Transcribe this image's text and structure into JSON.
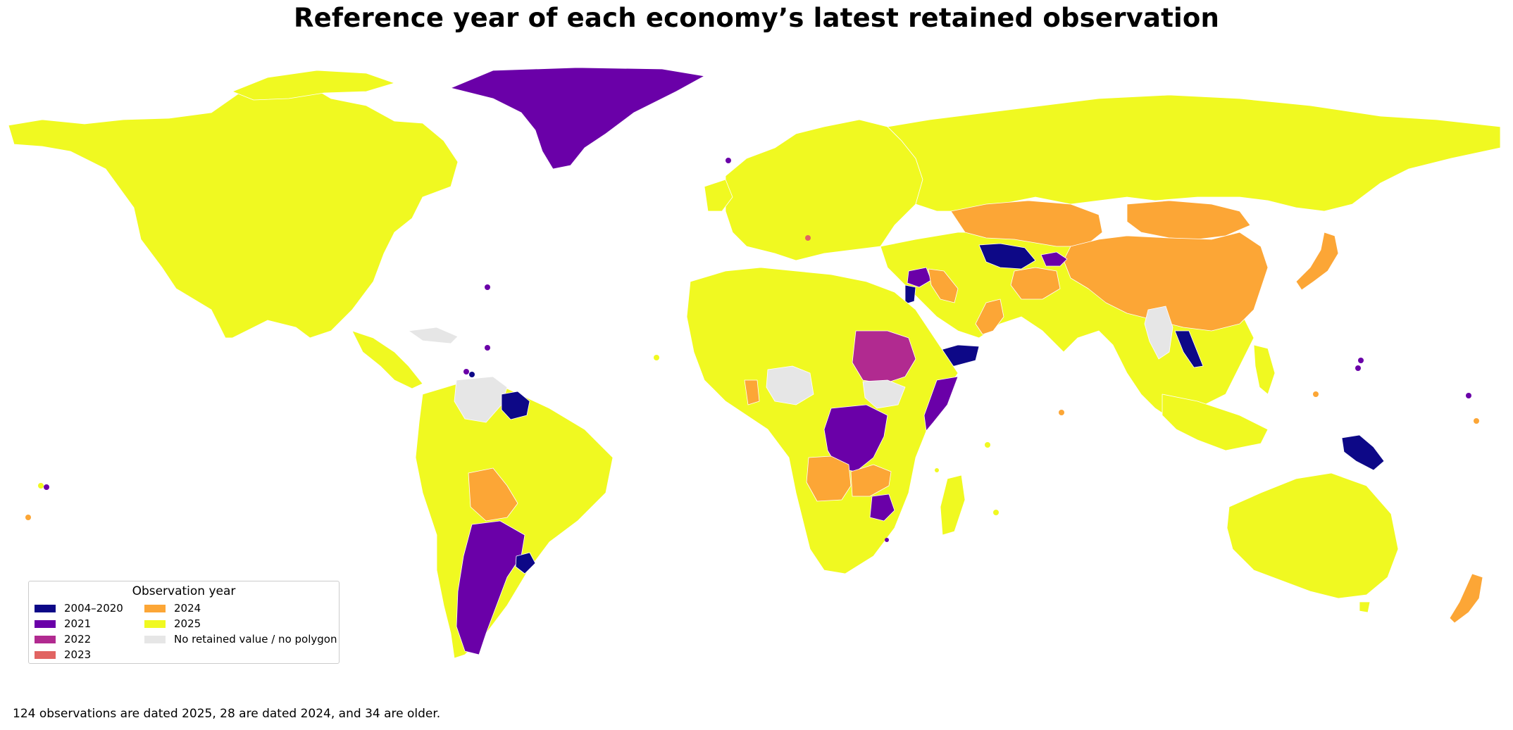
{
  "title": "Reference year of each economy’s latest retained observation",
  "footnote": "124 observations are dated 2025, 28 are dated 2024, and 34 are older.",
  "legend": {
    "title": "Observation year",
    "items": [
      {
        "label": "2004–2020",
        "color": "#0d0887"
      },
      {
        "label": "2021",
        "color": "#6a00a8"
      },
      {
        "label": "2022",
        "color": "#b12a90"
      },
      {
        "label": "2023",
        "color": "#e16462"
      },
      {
        "label": "2024",
        "color": "#fca636"
      },
      {
        "label": "2025",
        "color": "#f0f921"
      },
      {
        "label": "No retained value / no polygon",
        "color": "#e6e6e6"
      }
    ]
  },
  "regions": [
    {
      "name": "North America",
      "year": "2025"
    },
    {
      "name": "Greenland",
      "year": "2021"
    },
    {
      "name": "Europe",
      "year": "2025"
    },
    {
      "name": "Russia",
      "year": "2025"
    },
    {
      "name": "Kazakhstan",
      "year": "2024"
    },
    {
      "name": "Mongolia",
      "year": "2024"
    },
    {
      "name": "China",
      "year": "2024"
    },
    {
      "name": "Japan",
      "year": "2024"
    },
    {
      "name": "Turkmenistan",
      "year": "2004–2020"
    },
    {
      "name": "Tajikistan",
      "year": "2021"
    },
    {
      "name": "Afghanistan",
      "year": "2024"
    },
    {
      "name": "Iraq",
      "year": "2024"
    },
    {
      "name": "Syria",
      "year": "2021"
    },
    {
      "name": "Jordan",
      "year": "2004–2020"
    },
    {
      "name": "Oman",
      "year": "2024"
    },
    {
      "name": "Yemen",
      "year": "2004–2020"
    },
    {
      "name": "Sudan",
      "year": "2022"
    },
    {
      "name": "Somalia",
      "year": "2021"
    },
    {
      "name": "South Sudan",
      "year": "No retained value / no polygon"
    },
    {
      "name": "Nigeria",
      "year": "No retained value / no polygon"
    },
    {
      "name": "Ghana",
      "year": "2024"
    },
    {
      "name": "DR Congo",
      "year": "2021"
    },
    {
      "name": "Angola",
      "year": "2024"
    },
    {
      "name": "Zambia",
      "year": "2024"
    },
    {
      "name": "Zimbabwe",
      "year": "2021"
    },
    {
      "name": "Laos",
      "year": "2004–2020"
    },
    {
      "name": "Myanmar",
      "year": "No retained value / no polygon"
    },
    {
      "name": "Papua New Guinea",
      "year": "2004–2020"
    },
    {
      "name": "New Zealand",
      "year": "2024"
    },
    {
      "name": "Venezuela",
      "year": "No retained value / no polygon"
    },
    {
      "name": "Guyana",
      "year": "2004–2020"
    },
    {
      "name": "Bolivia",
      "year": "2024"
    },
    {
      "name": "Argentina",
      "year": "2021"
    },
    {
      "name": "Uruguay",
      "year": "2004–2020"
    },
    {
      "name": "South America",
      "year": "2025"
    },
    {
      "name": "Africa",
      "year": "2025"
    },
    {
      "name": "Asia",
      "year": "2025"
    },
    {
      "name": "Australia",
      "year": "2025"
    }
  ]
}
